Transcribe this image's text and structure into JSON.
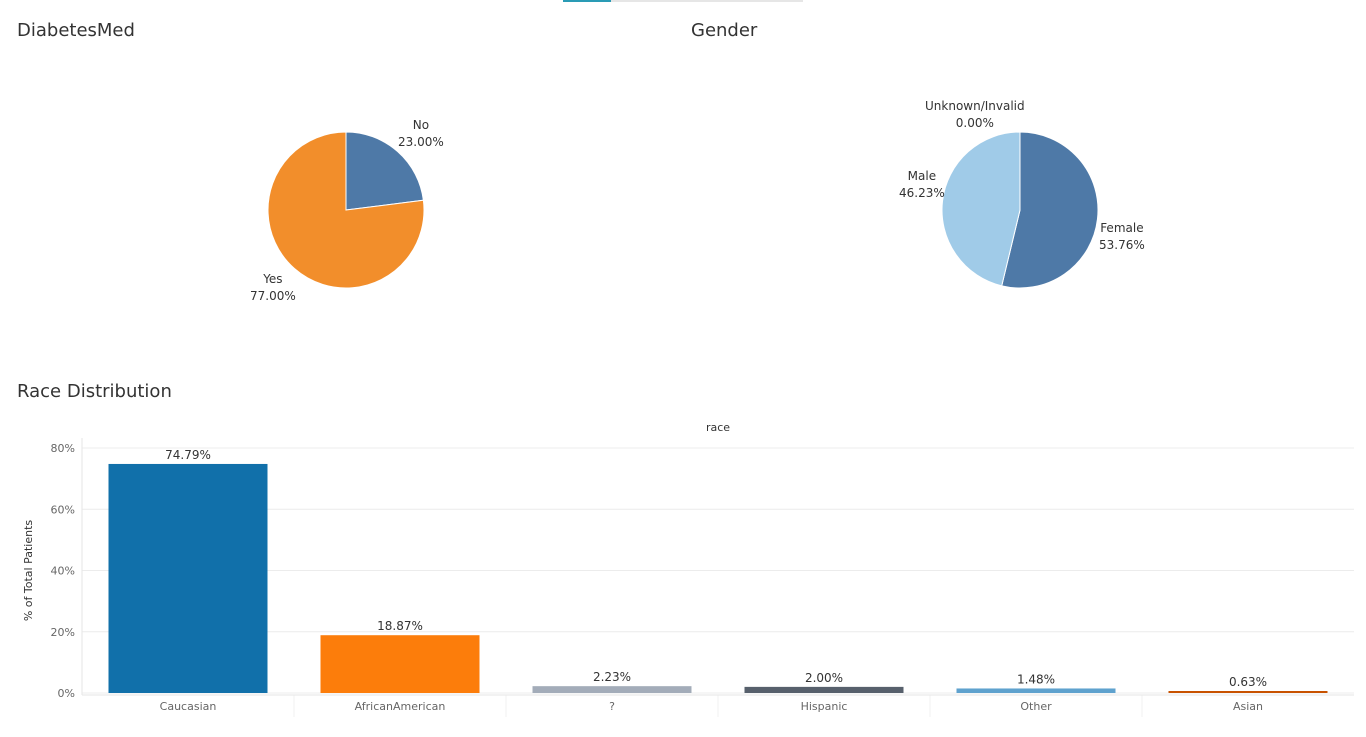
{
  "titles": {
    "diabetes": "DiabetesMed",
    "gender": "Gender",
    "race": "Race Distribution"
  },
  "chart_data": [
    {
      "type": "pie",
      "title": "DiabetesMed",
      "slices": [
        {
          "label": "No",
          "value": 23.0,
          "display": "23.00%",
          "color": "#4e79a7"
        },
        {
          "label": "Yes",
          "value": 77.0,
          "display": "77.00%",
          "color": "#f28e2b"
        }
      ]
    },
    {
      "type": "pie",
      "title": "Gender",
      "slices": [
        {
          "label": "Female",
          "value": 53.76,
          "display": "53.76%",
          "color": "#4e79a7"
        },
        {
          "label": "Male",
          "value": 46.23,
          "display": "46.23%",
          "color": "#a0cbe8"
        },
        {
          "label": "Unknown/Invalid",
          "value": 0.0,
          "display": "0.00%",
          "color": "#a0cbe8"
        }
      ]
    },
    {
      "type": "bar",
      "title": "Race Distribution",
      "header": "race",
      "ylabel": "% of Total Patients",
      "ylim": [
        0,
        80
      ],
      "yticks": [
        "0%",
        "20%",
        "40%",
        "60%",
        "80%"
      ],
      "categories": [
        "Caucasian",
        "AfricanAmerican",
        "?",
        "Hispanic",
        "Other",
        "Asian"
      ],
      "values": [
        74.79,
        18.87,
        2.23,
        2.0,
        1.48,
        0.63
      ],
      "labels": [
        "74.79%",
        "18.87%",
        "2.23%",
        "2.00%",
        "1.48%",
        "0.63%"
      ],
      "colors": [
        "#1170aa",
        "#fc7d0b",
        "#a3acb9",
        "#57606c",
        "#5fa2ce",
        "#c85200"
      ],
      "grid": true
    }
  ]
}
